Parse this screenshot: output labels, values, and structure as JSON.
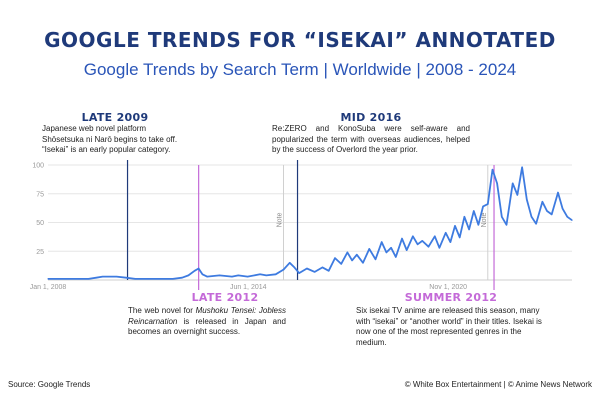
{
  "title": "GOOGLE TRENDS FOR “ISEKAI” ANNOTATED",
  "subtitle": "Google Trends by Search Term | Worldwide | 2008 - 2024",
  "footer": {
    "source": "Source: Google Trends",
    "credit": "© White Box Entertainment | © Anime News Network"
  },
  "annotations": {
    "late2009": {
      "heading": "LATE 2009",
      "text": "Japanese web novel platform Shōsetsuka ni Narō begins to take off. “Isekai” is an early popular category."
    },
    "mid2016": {
      "heading": "MID 2016",
      "text": "Re:ZERO and KonoSuba were self-aware and popularized the term with overseas audiences, helped by the success of Overlord the year prior."
    },
    "late2012": {
      "heading": "LATE 2012",
      "text_pre": "The web novel for ",
      "text_em": "Mushoku Tensei: Jobless Reincarnation",
      "text_post": " is released in Japan and becomes an overnight success."
    },
    "summer2012": {
      "heading": "SUMMER 2012",
      "text": "Six isekai TV anime are released this season, many with “isekai” or “another world” in their titles. Isekai is now one of the most represented genres in the medium."
    }
  },
  "colors": {
    "title": "#1f3a7a",
    "subtitle": "#2a55b8",
    "line": "#3e7be0",
    "marker_blue": "#1f3a7a",
    "marker_pink": "#c46ad8",
    "grid": "#e6e6e6"
  },
  "chart_data": {
    "type": "line",
    "series": [
      {
        "values": [
          [
            2008.0,
            1
          ],
          [
            2008.5,
            1
          ],
          [
            2009.0,
            1
          ],
          [
            2009.3,
            1
          ],
          [
            2009.55,
            2
          ],
          [
            2009.75,
            3
          ],
          [
            2010.0,
            3
          ],
          [
            2010.2,
            3
          ],
          [
            2010.5,
            2
          ],
          [
            2010.8,
            1
          ],
          [
            2011.2,
            1
          ],
          [
            2011.7,
            1
          ],
          [
            2012.0,
            1
          ],
          [
            2012.3,
            2
          ],
          [
            2012.5,
            4
          ],
          [
            2012.7,
            8
          ],
          [
            2012.83,
            10
          ],
          [
            2012.95,
            5
          ],
          [
            2013.1,
            3
          ],
          [
            2013.5,
            4
          ],
          [
            2013.9,
            3
          ],
          [
            2014.1,
            4
          ],
          [
            2014.4,
            3
          ],
          [
            2014.8,
            5
          ],
          [
            2015.0,
            4
          ],
          [
            2015.3,
            5
          ],
          [
            2015.55,
            9
          ],
          [
            2015.75,
            15
          ],
          [
            2015.9,
            11
          ],
          [
            2016.05,
            6
          ],
          [
            2016.3,
            10
          ],
          [
            2016.55,
            7
          ],
          [
            2016.8,
            11
          ],
          [
            2017.0,
            8
          ],
          [
            2017.2,
            19
          ],
          [
            2017.4,
            14
          ],
          [
            2017.6,
            24
          ],
          [
            2017.75,
            17
          ],
          [
            2017.9,
            22
          ],
          [
            2018.1,
            15
          ],
          [
            2018.3,
            27
          ],
          [
            2018.5,
            18
          ],
          [
            2018.7,
            33
          ],
          [
            2018.85,
            24
          ],
          [
            2019.0,
            28
          ],
          [
            2019.15,
            20
          ],
          [
            2019.35,
            36
          ],
          [
            2019.5,
            26
          ],
          [
            2019.7,
            38
          ],
          [
            2019.85,
            31
          ],
          [
            2020.0,
            34
          ],
          [
            2020.2,
            29
          ],
          [
            2020.4,
            38
          ],
          [
            2020.55,
            28
          ],
          [
            2020.75,
            41
          ],
          [
            2020.9,
            33
          ],
          [
            2021.05,
            47
          ],
          [
            2021.2,
            37
          ],
          [
            2021.35,
            55
          ],
          [
            2021.5,
            44
          ],
          [
            2021.65,
            60
          ],
          [
            2021.8,
            48
          ],
          [
            2021.95,
            64
          ],
          [
            2022.1,
            66
          ],
          [
            2022.25,
            96
          ],
          [
            2022.4,
            84
          ],
          [
            2022.55,
            55
          ],
          [
            2022.7,
            48
          ],
          [
            2022.9,
            84
          ],
          [
            2023.05,
            74
          ],
          [
            2023.2,
            98
          ],
          [
            2023.35,
            70
          ],
          [
            2023.5,
            55
          ],
          [
            2023.65,
            49
          ],
          [
            2023.85,
            68
          ],
          [
            2024.0,
            60
          ],
          [
            2024.15,
            57
          ],
          [
            2024.35,
            76
          ],
          [
            2024.5,
            62
          ],
          [
            2024.65,
            55
          ],
          [
            2024.8,
            52
          ]
        ]
      }
    ],
    "xlim": [
      2008.0,
      2024.8
    ],
    "ylim": [
      0,
      100
    ],
    "yticks": [
      25,
      50,
      75,
      100
    ],
    "xticks": [
      {
        "label": "Jan 1, 2008",
        "value": 2008.0
      },
      {
        "label": "Jun 1, 2014",
        "value": 2014.42
      },
      {
        "label": "Nov 1, 2020",
        "value": 2020.83
      }
    ],
    "grid": true,
    "markers": [
      {
        "label": "LATE 2009",
        "x": 2010.55,
        "color": "blue"
      },
      {
        "label": "LATE 2012",
        "x": 2012.83,
        "color": "pink"
      },
      {
        "label": "MID 2016",
        "x": 2016.0,
        "color": "blue"
      },
      {
        "label": "SUMMER 2012",
        "x": 2022.3,
        "color": "pink"
      }
    ],
    "notes": [
      {
        "label": "Note",
        "x": 2015.55
      },
      {
        "label": "Note",
        "x": 2022.1
      }
    ]
  }
}
